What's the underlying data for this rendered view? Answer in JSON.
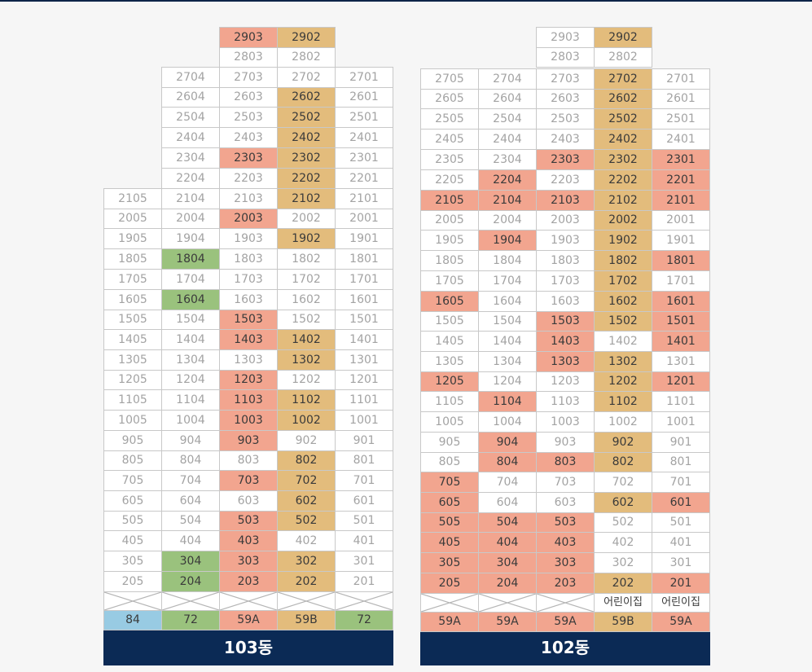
{
  "colors": {
    "sold_salmon": "#f2a58f",
    "sold_gold": "#e3bc7c",
    "sold_green": "#9ac27d",
    "type_blue": "#98cbe3",
    "label_navy": "#0b2a55"
  },
  "buildings": [
    {
      "name": "103동",
      "columns": 5,
      "rows": [
        [
          null,
          null,
          {
            "t": "2903",
            "c": "s"
          },
          {
            "t": "2902",
            "c": "y"
          },
          null
        ],
        [
          null,
          null,
          {
            "t": "2803"
          },
          {
            "t": "2802"
          },
          null
        ],
        [
          null,
          {
            "t": "2704"
          },
          {
            "t": "2703"
          },
          {
            "t": "2702"
          },
          {
            "t": "2701"
          }
        ],
        [
          null,
          {
            "t": "2604"
          },
          {
            "t": "2603"
          },
          {
            "t": "2602",
            "c": "y"
          },
          {
            "t": "2601"
          }
        ],
        [
          null,
          {
            "t": "2504"
          },
          {
            "t": "2503"
          },
          {
            "t": "2502",
            "c": "y"
          },
          {
            "t": "2501"
          }
        ],
        [
          null,
          {
            "t": "2404"
          },
          {
            "t": "2403"
          },
          {
            "t": "2402",
            "c": "y"
          },
          {
            "t": "2401"
          }
        ],
        [
          null,
          {
            "t": "2304"
          },
          {
            "t": "2303",
            "c": "s"
          },
          {
            "t": "2302",
            "c": "y"
          },
          {
            "t": "2301"
          }
        ],
        [
          null,
          {
            "t": "2204"
          },
          {
            "t": "2203"
          },
          {
            "t": "2202",
            "c": "y"
          },
          {
            "t": "2201"
          }
        ],
        [
          {
            "t": "2105"
          },
          {
            "t": "2104"
          },
          {
            "t": "2103"
          },
          {
            "t": "2102",
            "c": "y"
          },
          {
            "t": "2101"
          }
        ],
        [
          {
            "t": "2005"
          },
          {
            "t": "2004"
          },
          {
            "t": "2003",
            "c": "s"
          },
          {
            "t": "2002"
          },
          {
            "t": "2001"
          }
        ],
        [
          {
            "t": "1905"
          },
          {
            "t": "1904"
          },
          {
            "t": "1903"
          },
          {
            "t": "1902",
            "c": "y"
          },
          {
            "t": "1901"
          }
        ],
        [
          {
            "t": "1805"
          },
          {
            "t": "1804",
            "c": "g"
          },
          {
            "t": "1803"
          },
          {
            "t": "1802"
          },
          {
            "t": "1801"
          }
        ],
        [
          {
            "t": "1705"
          },
          {
            "t": "1704"
          },
          {
            "t": "1703"
          },
          {
            "t": "1702"
          },
          {
            "t": "1701"
          }
        ],
        [
          {
            "t": "1605"
          },
          {
            "t": "1604",
            "c": "g"
          },
          {
            "t": "1603"
          },
          {
            "t": "1602"
          },
          {
            "t": "1601"
          }
        ],
        [
          {
            "t": "1505"
          },
          {
            "t": "1504"
          },
          {
            "t": "1503",
            "c": "s"
          },
          {
            "t": "1502"
          },
          {
            "t": "1501"
          }
        ],
        [
          {
            "t": "1405"
          },
          {
            "t": "1404"
          },
          {
            "t": "1403",
            "c": "s"
          },
          {
            "t": "1402",
            "c": "y"
          },
          {
            "t": "1401"
          }
        ],
        [
          {
            "t": "1305"
          },
          {
            "t": "1304"
          },
          {
            "t": "1303"
          },
          {
            "t": "1302",
            "c": "y"
          },
          {
            "t": "1301"
          }
        ],
        [
          {
            "t": "1205"
          },
          {
            "t": "1204"
          },
          {
            "t": "1203",
            "c": "s"
          },
          {
            "t": "1202"
          },
          {
            "t": "1201"
          }
        ],
        [
          {
            "t": "1105"
          },
          {
            "t": "1104"
          },
          {
            "t": "1103",
            "c": "s"
          },
          {
            "t": "1102",
            "c": "y"
          },
          {
            "t": "1101"
          }
        ],
        [
          {
            "t": "1005"
          },
          {
            "t": "1004"
          },
          {
            "t": "1003",
            "c": "s"
          },
          {
            "t": "1002",
            "c": "y"
          },
          {
            "t": "1001"
          }
        ],
        [
          {
            "t": "905"
          },
          {
            "t": "904"
          },
          {
            "t": "903",
            "c": "s"
          },
          {
            "t": "902"
          },
          {
            "t": "901"
          }
        ],
        [
          {
            "t": "805"
          },
          {
            "t": "804"
          },
          {
            "t": "803"
          },
          {
            "t": "802",
            "c": "y"
          },
          {
            "t": "801"
          }
        ],
        [
          {
            "t": "705"
          },
          {
            "t": "704"
          },
          {
            "t": "703",
            "c": "s"
          },
          {
            "t": "702",
            "c": "y"
          },
          {
            "t": "701"
          }
        ],
        [
          {
            "t": "605"
          },
          {
            "t": "604"
          },
          {
            "t": "603"
          },
          {
            "t": "602",
            "c": "y"
          },
          {
            "t": "601"
          }
        ],
        [
          {
            "t": "505"
          },
          {
            "t": "504"
          },
          {
            "t": "503",
            "c": "s"
          },
          {
            "t": "502",
            "c": "y"
          },
          {
            "t": "501"
          }
        ],
        [
          {
            "t": "405"
          },
          {
            "t": "404"
          },
          {
            "t": "403",
            "c": "s"
          },
          {
            "t": "402"
          },
          {
            "t": "401"
          }
        ],
        [
          {
            "t": "305"
          },
          {
            "t": "304",
            "c": "g"
          },
          {
            "t": "303",
            "c": "s"
          },
          {
            "t": "302",
            "c": "y"
          },
          {
            "t": "301"
          }
        ],
        [
          {
            "t": "205"
          },
          {
            "t": "204",
            "c": "g"
          },
          {
            "t": "203",
            "c": "s"
          },
          {
            "t": "202",
            "c": "y"
          },
          {
            "t": "201"
          }
        ],
        [
          {
            "c": "x"
          },
          {
            "c": "x"
          },
          {
            "c": "x"
          },
          {
            "c": "x"
          },
          {
            "c": "x"
          }
        ],
        [
          {
            "t": "84",
            "c": "b"
          },
          {
            "t": "72",
            "c": "g"
          },
          {
            "t": "59A",
            "c": "s"
          },
          {
            "t": "59B",
            "c": "y"
          },
          {
            "t": "72",
            "c": "g"
          }
        ]
      ]
    },
    {
      "name": "102동",
      "columns": 5,
      "rows": [
        [
          null,
          null,
          {
            "t": "2903"
          },
          {
            "t": "2902",
            "c": "y"
          },
          null
        ],
        [
          null,
          null,
          {
            "t": "2803"
          },
          {
            "t": "2802"
          },
          null
        ],
        [
          {
            "t": "2705"
          },
          {
            "t": "2704"
          },
          {
            "t": "2703"
          },
          {
            "t": "2702",
            "c": "y"
          },
          {
            "t": "2701"
          }
        ],
        [
          {
            "t": "2605"
          },
          {
            "t": "2604"
          },
          {
            "t": "2603"
          },
          {
            "t": "2602",
            "c": "y"
          },
          {
            "t": "2601"
          }
        ],
        [
          {
            "t": "2505"
          },
          {
            "t": "2504"
          },
          {
            "t": "2503"
          },
          {
            "t": "2502",
            "c": "y"
          },
          {
            "t": "2501"
          }
        ],
        [
          {
            "t": "2405"
          },
          {
            "t": "2404"
          },
          {
            "t": "2403"
          },
          {
            "t": "2402",
            "c": "y"
          },
          {
            "t": "2401"
          }
        ],
        [
          {
            "t": "2305"
          },
          {
            "t": "2304"
          },
          {
            "t": "2303",
            "c": "s"
          },
          {
            "t": "2302",
            "c": "y"
          },
          {
            "t": "2301",
            "c": "s"
          }
        ],
        [
          {
            "t": "2205"
          },
          {
            "t": "2204",
            "c": "s"
          },
          {
            "t": "2203"
          },
          {
            "t": "2202",
            "c": "y"
          },
          {
            "t": "2201",
            "c": "s"
          }
        ],
        [
          {
            "t": "2105",
            "c": "s"
          },
          {
            "t": "2104",
            "c": "s"
          },
          {
            "t": "2103",
            "c": "s"
          },
          {
            "t": "2102",
            "c": "y"
          },
          {
            "t": "2101",
            "c": "s"
          }
        ],
        [
          {
            "t": "2005"
          },
          {
            "t": "2004"
          },
          {
            "t": "2003"
          },
          {
            "t": "2002",
            "c": "y"
          },
          {
            "t": "2001"
          }
        ],
        [
          {
            "t": "1905"
          },
          {
            "t": "1904",
            "c": "s"
          },
          {
            "t": "1903"
          },
          {
            "t": "1902",
            "c": "y"
          },
          {
            "t": "1901"
          }
        ],
        [
          {
            "t": "1805"
          },
          {
            "t": "1804"
          },
          {
            "t": "1803"
          },
          {
            "t": "1802",
            "c": "y"
          },
          {
            "t": "1801",
            "c": "s"
          }
        ],
        [
          {
            "t": "1705"
          },
          {
            "t": "1704"
          },
          {
            "t": "1703"
          },
          {
            "t": "1702",
            "c": "y"
          },
          {
            "t": "1701"
          }
        ],
        [
          {
            "t": "1605",
            "c": "s"
          },
          {
            "t": "1604"
          },
          {
            "t": "1603"
          },
          {
            "t": "1602",
            "c": "y"
          },
          {
            "t": "1601",
            "c": "s"
          }
        ],
        [
          {
            "t": "1505"
          },
          {
            "t": "1504"
          },
          {
            "t": "1503",
            "c": "s"
          },
          {
            "t": "1502",
            "c": "y"
          },
          {
            "t": "1501",
            "c": "s"
          }
        ],
        [
          {
            "t": "1405"
          },
          {
            "t": "1404"
          },
          {
            "t": "1403",
            "c": "s"
          },
          {
            "t": "1402"
          },
          {
            "t": "1401",
            "c": "s"
          }
        ],
        [
          {
            "t": "1305"
          },
          {
            "t": "1304"
          },
          {
            "t": "1303",
            "c": "s"
          },
          {
            "t": "1302",
            "c": "y"
          },
          {
            "t": "1301"
          }
        ],
        [
          {
            "t": "1205",
            "c": "s"
          },
          {
            "t": "1204"
          },
          {
            "t": "1203"
          },
          {
            "t": "1202",
            "c": "y"
          },
          {
            "t": "1201",
            "c": "s"
          }
        ],
        [
          {
            "t": "1105"
          },
          {
            "t": "1104",
            "c": "s"
          },
          {
            "t": "1103"
          },
          {
            "t": "1102",
            "c": "y"
          },
          {
            "t": "1101"
          }
        ],
        [
          {
            "t": "1005"
          },
          {
            "t": "1004"
          },
          {
            "t": "1003"
          },
          {
            "t": "1002"
          },
          {
            "t": "1001"
          }
        ],
        [
          {
            "t": "905"
          },
          {
            "t": "904",
            "c": "s"
          },
          {
            "t": "903"
          },
          {
            "t": "902",
            "c": "y"
          },
          {
            "t": "901"
          }
        ],
        [
          {
            "t": "805"
          },
          {
            "t": "804",
            "c": "s"
          },
          {
            "t": "803",
            "c": "s"
          },
          {
            "t": "802",
            "c": "y"
          },
          {
            "t": "801"
          }
        ],
        [
          {
            "t": "705",
            "c": "s"
          },
          {
            "t": "704"
          },
          {
            "t": "703"
          },
          {
            "t": "702"
          },
          {
            "t": "701"
          }
        ],
        [
          {
            "t": "605",
            "c": "s"
          },
          {
            "t": "604"
          },
          {
            "t": "603"
          },
          {
            "t": "602",
            "c": "y"
          },
          {
            "t": "601",
            "c": "s"
          }
        ],
        [
          {
            "t": "505",
            "c": "s"
          },
          {
            "t": "504",
            "c": "s"
          },
          {
            "t": "503",
            "c": "s"
          },
          {
            "t": "502"
          },
          {
            "t": "501"
          }
        ],
        [
          {
            "t": "405",
            "c": "s"
          },
          {
            "t": "404",
            "c": "s"
          },
          {
            "t": "403",
            "c": "s"
          },
          {
            "t": "402"
          },
          {
            "t": "401"
          }
        ],
        [
          {
            "t": "305",
            "c": "s"
          },
          {
            "t": "304",
            "c": "s"
          },
          {
            "t": "303",
            "c": "s"
          },
          {
            "t": "302"
          },
          {
            "t": "301"
          }
        ],
        [
          {
            "t": "205",
            "c": "s"
          },
          {
            "t": "204",
            "c": "s"
          },
          {
            "t": "203",
            "c": "s"
          },
          {
            "t": "202",
            "c": "y"
          },
          {
            "t": "201",
            "c": "s"
          }
        ],
        [
          {
            "c": "x"
          },
          {
            "c": "x"
          },
          {
            "c": "x"
          },
          {
            "t": "어린이집",
            "c": "note"
          },
          {
            "t": "어린이집",
            "c": "note"
          }
        ],
        [
          {
            "t": "59A",
            "c": "s"
          },
          {
            "t": "59A",
            "c": "s"
          },
          {
            "t": "59A",
            "c": "s"
          },
          {
            "t": "59B",
            "c": "y"
          },
          {
            "t": "59A",
            "c": "s"
          }
        ]
      ]
    }
  ]
}
